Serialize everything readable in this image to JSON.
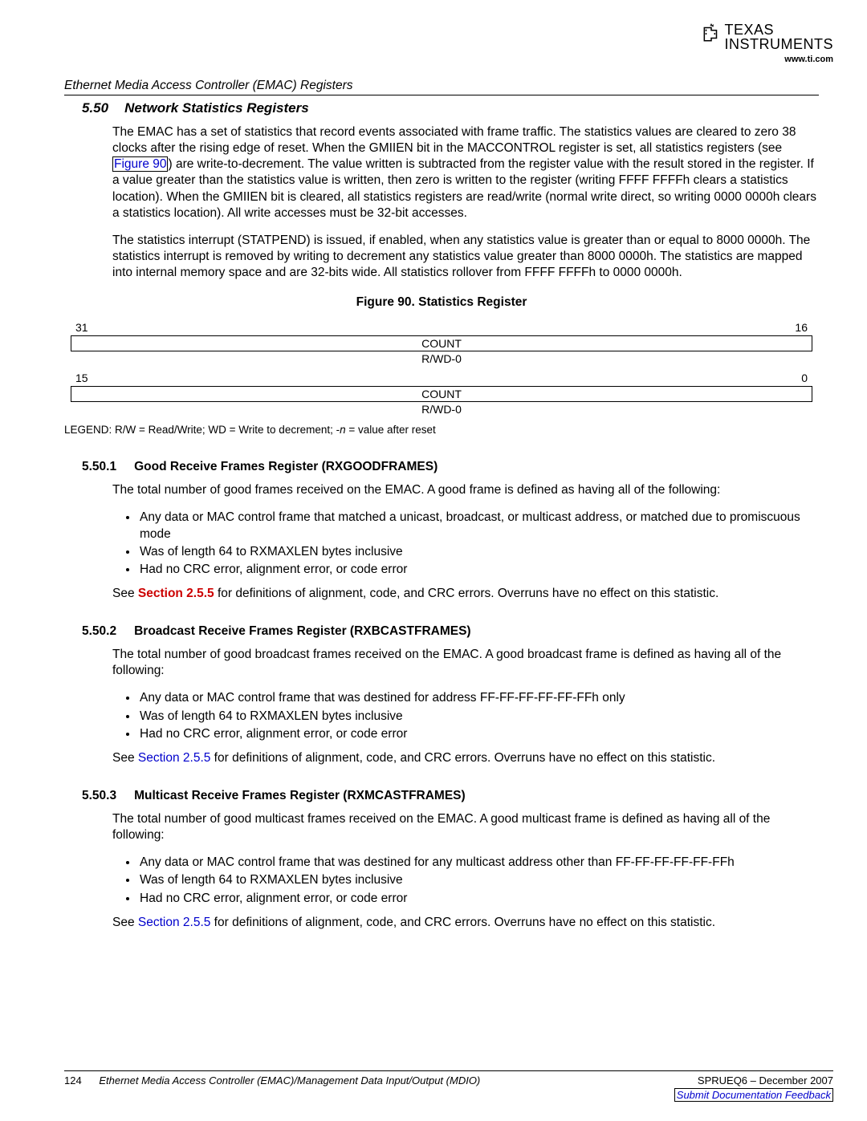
{
  "header": {
    "logo_texas": "TEXAS",
    "logo_instruments": "INSTRUMENTS",
    "url": "www.ti.com"
  },
  "breadcrumb": "Ethernet Media Access Controller (EMAC) Registers",
  "section": {
    "num": "5.50",
    "title": "Network Statistics Registers"
  },
  "para1_a": "The EMAC has a set of statistics that record events associated with frame traffic. The statistics values are cleared to zero 38 clocks after the rising edge of reset. When the GMIIEN bit in the MACCONTROL register is set, all statistics registers (see ",
  "para1_link": "Figure 90",
  "para1_b": ") are write-to-decrement. The value written is subtracted from the register value with the result stored in the register. If a value greater than the statistics value is written, then zero is written to the register (writing FFFF FFFFh clears a statistics location). When the GMIIEN bit is cleared, all statistics registers are read/write (normal write direct, so writing 0000 0000h clears a statistics location). All write accesses must be 32-bit accesses.",
  "para2": "The statistics interrupt (STATPEND) is issued, if enabled, when any statistics value is greater than or equal to 8000 0000h. The statistics interrupt is removed by writing to decrement any statistics value greater than 8000 0000h. The statistics are mapped into internal memory space and are 32-bits wide. All statistics rollover from FFFF FFFFh to 0000 0000h.",
  "figure": {
    "title": "Figure 90. Statistics Register",
    "rows": [
      {
        "msb": "31",
        "lsb": "16",
        "field": "COUNT",
        "access": "R/WD-0"
      },
      {
        "msb": "15",
        "lsb": "0",
        "field": "COUNT",
        "access": "R/WD-0"
      }
    ],
    "legend_a": "LEGEND: R/W = Read/Write; WD = Write to decrement; -",
    "legend_n": "n",
    "legend_b": " = value after reset"
  },
  "subs": [
    {
      "num": "5.50.1",
      "title": "Good Receive Frames Register (RXGOODFRAMES)",
      "intro": "The total number of good frames received on the EMAC. A good frame is defined as having all of the following:",
      "bullets": [
        "Any data or MAC control frame that matched a unicast, broadcast, or multicast address, or matched due to promiscuous mode",
        "Was of length 64 to RXMAXLEN bytes inclusive",
        "Had no CRC error, alignment error, or code error"
      ],
      "see_a": "See ",
      "see_link": "Section 2.5.5",
      "see_link_color": "red",
      "see_b": " for definitions of alignment, code, and CRC errors. Overruns have no effect on this statistic."
    },
    {
      "num": "5.50.2",
      "title": "Broadcast Receive Frames Register (RXBCASTFRAMES)",
      "intro": "The total number of good broadcast frames received on the EMAC. A good broadcast frame is defined as having all of the following:",
      "bullets": [
        "Any data or MAC control frame that was destined for address FF-FF-FF-FF-FF-FFh only",
        "Was of length 64 to RXMAXLEN bytes inclusive",
        "Had no CRC error, alignment error, or code error"
      ],
      "see_a": "See ",
      "see_link": "Section 2.5.5",
      "see_link_color": "blue",
      "see_b": " for definitions of alignment, code, and CRC errors. Overruns have no effect on this statistic."
    },
    {
      "num": "5.50.3",
      "title": "Multicast Receive Frames Register (RXMCASTFRAMES)",
      "intro": "The total number of good multicast frames received on the EMAC. A good multicast frame is defined as having all of the following:",
      "bullets": [
        "Any data or MAC control frame that was destined for any multicast address other than FF-FF-FF-FF-FF-FFh",
        "Was of length 64 to RXMAXLEN bytes inclusive",
        "Had no CRC error, alignment error, or code error"
      ],
      "see_a": "See ",
      "see_link": "Section 2.5.5",
      "see_link_color": "blue",
      "see_b": " for definitions of alignment, code, and CRC errors. Overruns have no effect on this statistic."
    }
  ],
  "footer": {
    "page": "124",
    "title": "Ethernet Media Access Controller (EMAC)/Management Data Input/Output (MDIO)",
    "docid": "SPRUEQ6 – December 2007",
    "feedback": "Submit Documentation Feedback"
  }
}
